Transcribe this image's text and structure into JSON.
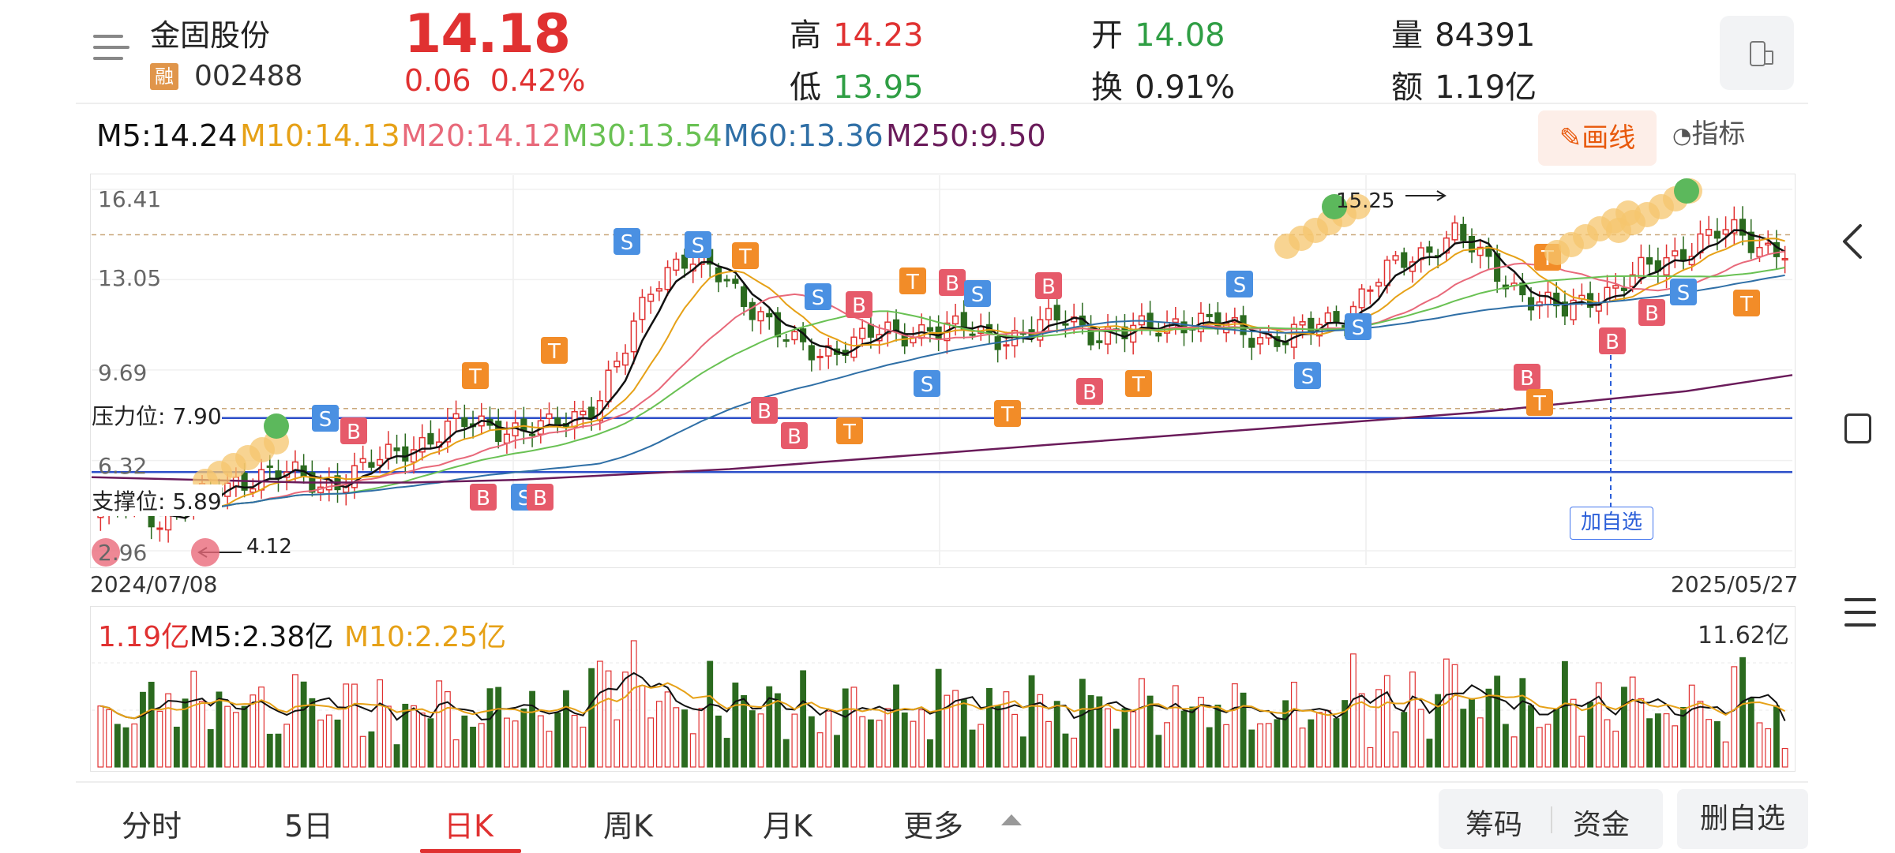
{
  "header": {
    "stock_name": "金固股份",
    "rong_badge": "融",
    "stock_code": "002488",
    "price": "14.18",
    "change_abs": "0.06",
    "change_pct": "0.42%",
    "high_label": "高",
    "high_value": "14.23",
    "low_label": "低",
    "low_value": "13.95",
    "open_label": "开",
    "open_value": "14.08",
    "turnover_label": "换",
    "turnover_value": "0.91%",
    "volume_label": "量",
    "volume_value": "84391",
    "amount_label": "额",
    "amount_value": "1.19亿"
  },
  "ma": {
    "m5": "M5:14.24",
    "m10": "M10:14.13",
    "m20": "M20:14.12",
    "m30": "M30:13.54",
    "m60": "M60:13.36",
    "m250": "M250:9.50"
  },
  "colors": {
    "m5": "#111111",
    "m10": "#e6a117",
    "m20": "#e8697a",
    "m30": "#69c153",
    "m60": "#2f6fa6",
    "m250": "#6a1b5a",
    "up": "#e03131",
    "down": "#2b6a1f",
    "support_line": "#2d4fc9"
  },
  "tools": {
    "draw_label": "画线",
    "indicator_label": "指标"
  },
  "price_chart": {
    "y_labels": [
      "16.41",
      "13.05",
      "9.69",
      "6.32",
      "2.96"
    ],
    "pressure_label": "压力位: 7.90",
    "support_label": "支撑位: 5.89",
    "high_marker": "15.25",
    "low_marker": "4.12",
    "start_date": "2024/07/08",
    "end_date": "2025/05/27",
    "add_favorite": "加自选"
  },
  "volume_chart": {
    "current": "1.19亿",
    "m5": "M5:2.38亿",
    "m10": "M10:2.25亿",
    "max": "11.62亿"
  },
  "tabs": [
    "分时",
    "5日",
    "日K",
    "周K",
    "月K",
    "更多"
  ],
  "active_tab": "日K",
  "bottom_buttons": {
    "chips": "筹码",
    "funds": "资金",
    "delete_favorite": "删自选"
  },
  "chart_data": {
    "type": "candlestick",
    "start_date": "2024/07/08",
    "end_date": "2025/05/27",
    "y_ticks": [
      16.41,
      13.05,
      9.69,
      6.32,
      2.96
    ],
    "ylim": [
      2.96,
      16.41
    ],
    "pressure": 7.9,
    "support": 5.89,
    "period_high": 15.25,
    "period_low": 4.12,
    "close_trend": [
      4.3,
      4.5,
      4.2,
      4.6,
      5.0,
      5.6,
      5.9,
      5.7,
      5.4,
      5.8,
      6.2,
      6.8,
      7.2,
      7.6,
      7.7,
      7.5,
      7.4,
      7.9,
      8.6,
      10.4,
      12.9,
      14.0,
      13.4,
      12.6,
      11.8,
      10.6,
      10.2,
      10.8,
      11.0,
      10.9,
      11.4,
      11.2,
      10.9,
      11.0,
      11.3,
      11.6,
      11.1,
      11.0,
      11.2,
      11.6,
      11.4,
      11.2,
      11.0,
      10.8,
      11.3,
      11.8,
      12.8,
      13.6,
      14.2,
      14.8,
      13.8,
      13.0,
      12.2,
      11.8,
      12.5,
      12.8,
      13.4,
      14.0,
      14.6,
      14.8,
      14.4,
      14.2
    ],
    "m250_trend": [
      5.7,
      5.6,
      5.5,
      5.5,
      5.6,
      5.8,
      6.0,
      6.3,
      6.6,
      6.9,
      7.2,
      7.5,
      7.8,
      8.1,
      8.5,
      8.9,
      9.5
    ],
    "volume_max_yi": 11.62,
    "volume_current_yi": 1.19,
    "volume_m5_yi": 2.38,
    "volume_m10_yi": 2.25
  }
}
